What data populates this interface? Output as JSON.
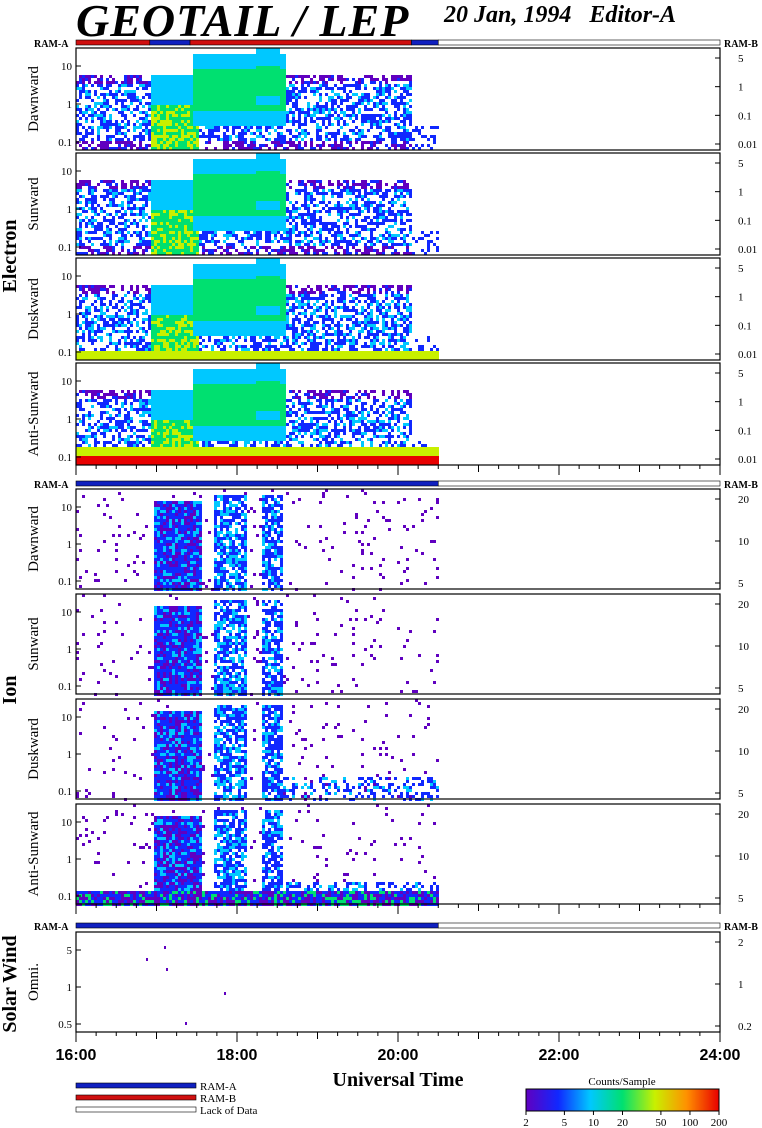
{
  "header": {
    "title": "GEOTAIL / LEP",
    "date": "20 Jan, 1994",
    "editor": "Editor-A"
  },
  "colors": {
    "ram_a": "#1020c0",
    "ram_b": "#d01010",
    "lack_of_data": "#ffffff"
  },
  "chart_data": [
    {
      "type": "heatmap",
      "group": "Electron",
      "panels": [
        "Dawnward",
        "Sunward",
        "Duskward",
        "Anti-Sunward"
      ],
      "y_scale": "log",
      "y_ticks_left": [
        "10",
        "1",
        "0.1"
      ],
      "y_ticks_right": [
        "5",
        "1",
        "0.1",
        "0.01"
      ],
      "mode_bar": {
        "left_label": "RAM-A",
        "right_label": "RAM-B",
        "segments": [
          {
            "from": "16:00",
            "to": "16:55",
            "mode": "RAM-B"
          },
          {
            "from": "16:55",
            "to": "17:25",
            "mode": "RAM-A"
          },
          {
            "from": "17:25",
            "to": "20:10",
            "mode": "RAM-B"
          },
          {
            "from": "20:10",
            "to": "20:30",
            "mode": "RAM-A"
          },
          {
            "from": "20:30",
            "to": "24:00",
            "mode": "Lack of Data"
          }
        ]
      },
      "data_end": "20:30"
    },
    {
      "type": "heatmap",
      "group": "Ion",
      "panels": [
        "Dawnward",
        "Sunward",
        "Duskward",
        "Anti-Sunward"
      ],
      "y_scale": "log",
      "y_ticks_left": [
        "10",
        "1",
        "0.1"
      ],
      "y_ticks_right": [
        "20",
        "10",
        "5"
      ],
      "mode_bar": {
        "left_label": "RAM-A",
        "right_label": "RAM-B",
        "segments": [
          {
            "from": "16:00",
            "to": "20:30",
            "mode": "RAM-A"
          },
          {
            "from": "20:30",
            "to": "24:00",
            "mode": "Lack of Data"
          }
        ]
      },
      "data_end": "20:30"
    },
    {
      "type": "heatmap",
      "group": "Solar Wind",
      "panels": [
        "Omni."
      ],
      "y_scale": "log",
      "y_ticks_left": [
        "5",
        "1",
        "0.5"
      ],
      "y_ticks_right": [
        "2",
        "1",
        "0.2"
      ],
      "mode_bar": {
        "left_label": "RAM-A",
        "right_label": "RAM-B",
        "segments": [
          {
            "from": "16:00",
            "to": "20:30",
            "mode": "RAM-A"
          },
          {
            "from": "20:30",
            "to": "24:00",
            "mode": "Lack of Data"
          }
        ]
      }
    }
  ],
  "x_axis": {
    "label": "Universal Time",
    "range": [
      "16:00",
      "24:00"
    ],
    "ticks": [
      "16:00",
      "18:00",
      "20:00",
      "22:00",
      "24:00"
    ]
  },
  "legend": {
    "items": [
      "RAM-A",
      "RAM-B",
      "Lack of Data"
    ]
  },
  "colorbar": {
    "title": "Counts/Sample",
    "ticks": [
      "2",
      "5",
      "10",
      "20",
      "50",
      "100",
      "200"
    ],
    "colors": [
      "#6000c0",
      "#1028ff",
      "#00c8ff",
      "#00e070",
      "#c8f000",
      "#ff9000",
      "#e80000"
    ]
  }
}
